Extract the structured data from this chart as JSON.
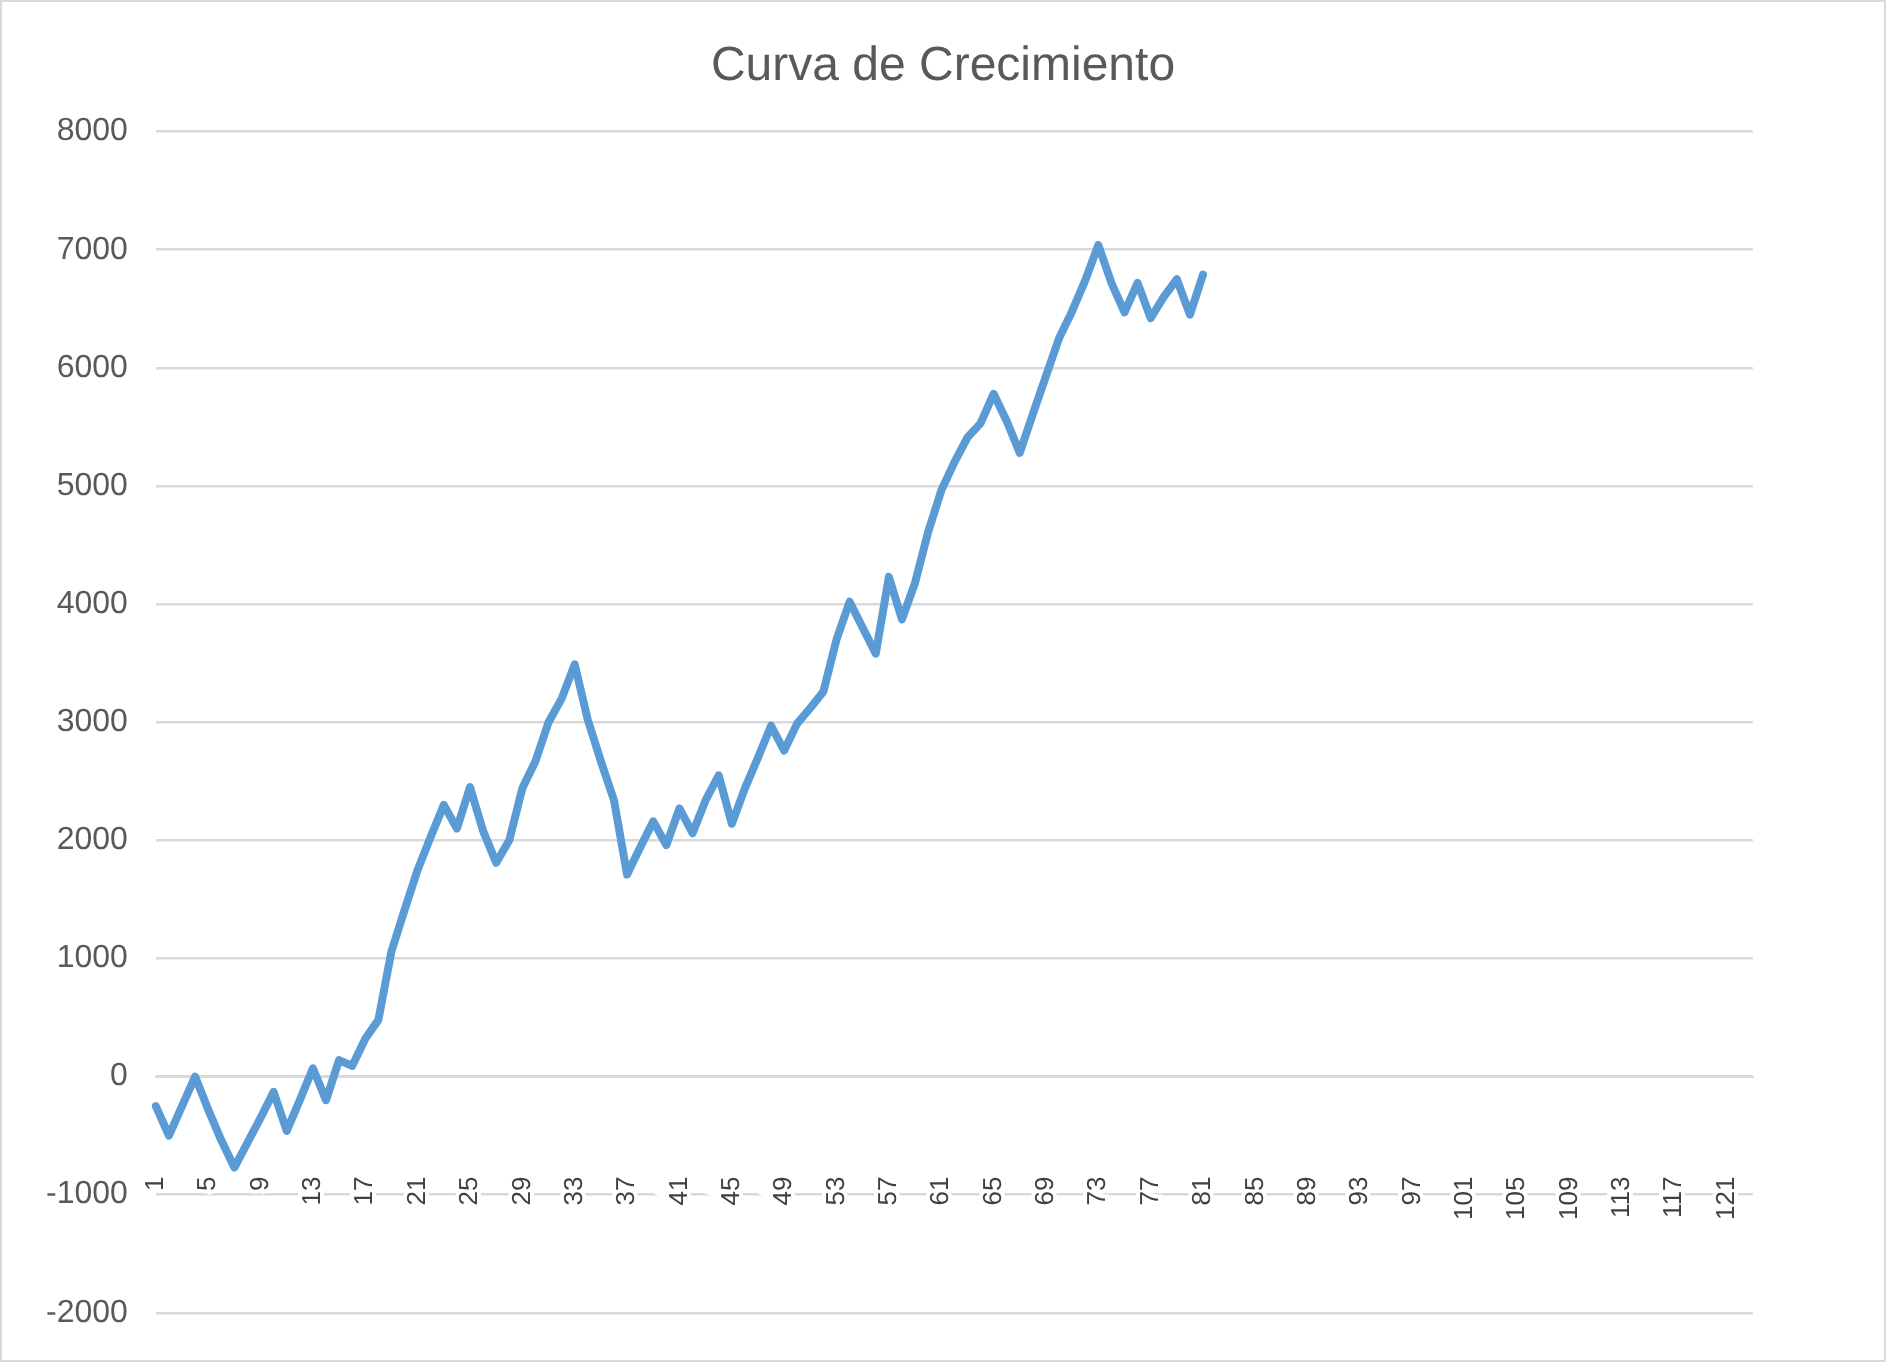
{
  "chart_data": {
    "type": "line",
    "title": "Curva de Crecimiento",
    "categories": [
      "1",
      null,
      null,
      null,
      "5",
      null,
      null,
      null,
      "9",
      null,
      null,
      null,
      "13",
      null,
      null,
      null,
      "17",
      null,
      null,
      null,
      "21",
      null,
      null,
      null,
      "25",
      null,
      null,
      null,
      "29",
      null,
      null,
      null,
      "33",
      null,
      null,
      null,
      "37",
      null,
      null,
      null,
      "41",
      null,
      null,
      null,
      "45",
      null,
      null,
      null,
      "49",
      null,
      null,
      null,
      "53",
      null,
      null,
      null,
      "57",
      null,
      null,
      null,
      "61",
      null,
      null,
      null,
      "65",
      null,
      null,
      null,
      "69",
      null,
      null,
      null,
      "73",
      null,
      null,
      null,
      "77",
      null,
      null,
      null,
      "81",
      null,
      null,
      null,
      "85",
      null,
      null,
      null,
      "89",
      null,
      null,
      null,
      "93",
      null,
      null,
      null,
      "97",
      null,
      null,
      null,
      "101",
      null,
      null,
      null,
      "105",
      null,
      null,
      null,
      "109",
      null,
      null,
      null,
      "113",
      null,
      null,
      null,
      "117",
      null,
      null,
      null,
      "121",
      null,
      null
    ],
    "series": [
      {
        "color": "#5b9bd5",
        "values": [
          -250,
          -500,
          -250,
          0,
          -280,
          -540,
          -770,
          -560,
          -350,
          -130,
          -460,
          -200,
          70,
          -200,
          140,
          90,
          320,
          480,
          1060,
          1410,
          1750,
          2030,
          2300,
          2100,
          2450,
          2080,
          1810,
          2000,
          2440,
          2670,
          3000,
          3200,
          3490,
          3020,
          2670,
          2340,
          1710,
          1940,
          2160,
          1960,
          2270,
          2060,
          2340,
          2550,
          2140,
          2440,
          2700,
          2970,
          2760,
          2990,
          3120,
          3260,
          3700,
          4020,
          3800,
          3580,
          4230,
          3870,
          4180,
          4610,
          4960,
          5200,
          5410,
          5530,
          5780,
          5550,
          5280,
          5610,
          5930,
          6250,
          6480,
          6740,
          7040,
          6720,
          6470,
          6720,
          6420,
          6600,
          6750,
          6450,
          6790,
          null,
          null,
          null,
          null,
          null,
          null,
          null,
          null,
          null,
          null,
          null,
          null,
          null,
          null,
          null,
          null,
          null,
          null,
          null,
          null,
          null,
          null,
          null,
          null,
          null,
          null,
          null,
          null,
          null,
          null,
          null,
          null,
          null,
          null,
          null,
          null,
          null,
          null,
          null,
          null,
          null,
          null
        ]
      }
    ],
    "ylim": [
      -2000,
      8000
    ],
    "yticks": [
      -2000,
      -1000,
      0,
      1000,
      2000,
      3000,
      4000,
      5000,
      6000,
      7000,
      8000
    ],
    "grid": "y",
    "legend": false,
    "marker": "none",
    "line_style": "solid"
  }
}
